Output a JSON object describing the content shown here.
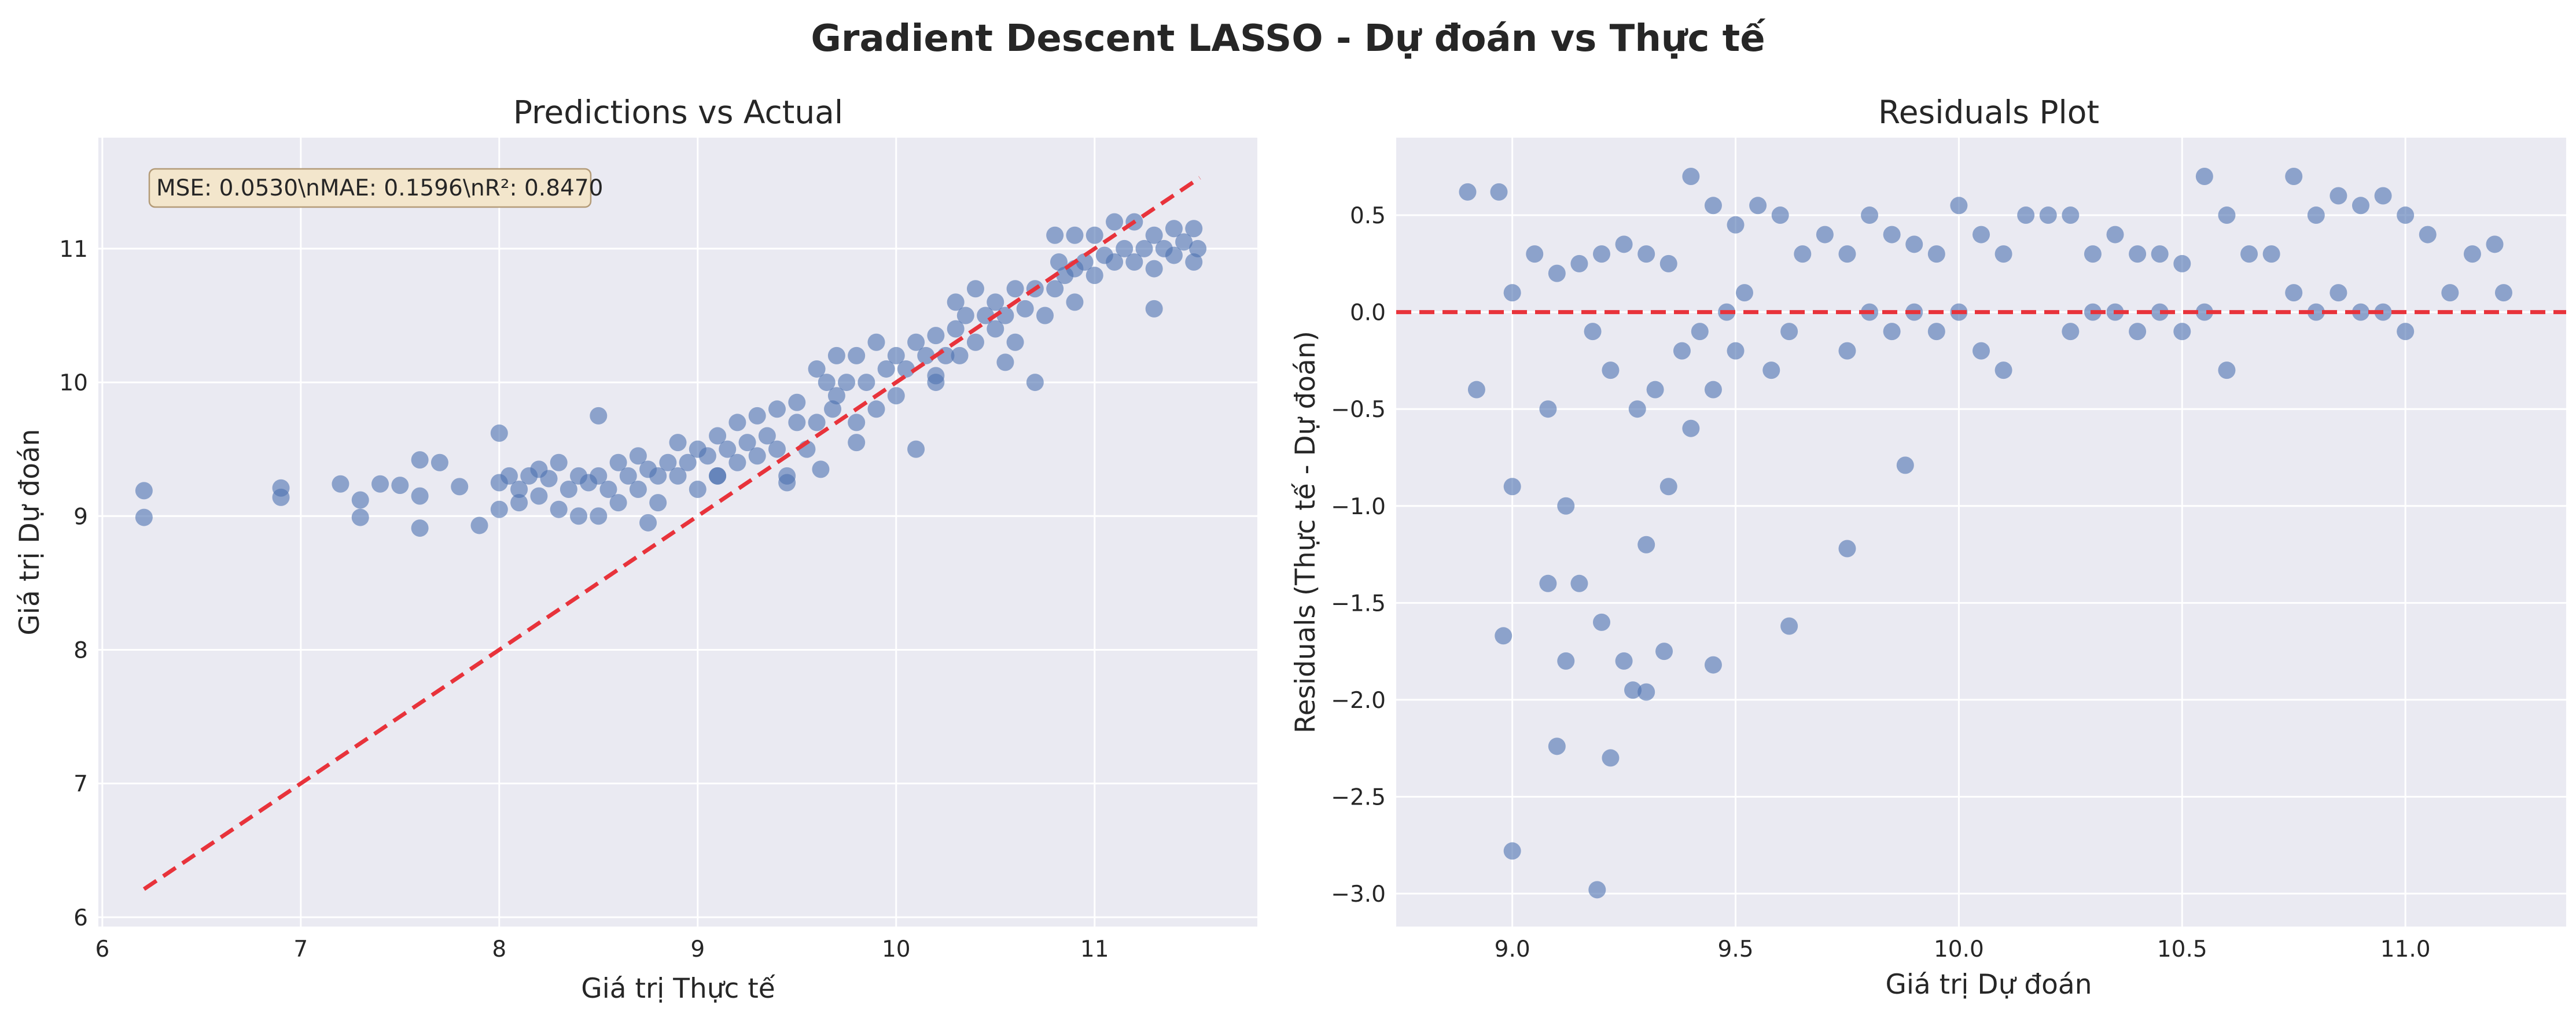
{
  "figure": {
    "title": "Gradient Descent LASSO - Dự đoán vs Thực tế"
  },
  "chart_data": [
    {
      "type": "scatter",
      "title": "Predictions vs Actual",
      "xlabel": "Giá trị Thực tế",
      "ylabel": "Giá trị Dự đoán",
      "xlim": [
        5.98,
        11.82
      ],
      "ylim": [
        5.93,
        11.83
      ],
      "xticks": [
        6,
        7,
        8,
        9,
        10,
        11
      ],
      "yticks": [
        6,
        7,
        8,
        9,
        10,
        11
      ],
      "grid": true,
      "annotation": "MSE: 0.0530\\nMAE: 0.1596\\nR²: 0.8470",
      "reference_line": {
        "x": [
          6.21,
          11.53
        ],
        "y": [
          6.21,
          11.53
        ],
        "style": "dashed",
        "color": "#e8333b"
      },
      "point_color": "#4c72b0",
      "x": [
        6.21,
        6.21,
        6.9,
        6.9,
        7.2,
        7.3,
        7.3,
        7.4,
        7.5,
        7.6,
        7.6,
        7.6,
        7.7,
        7.8,
        7.9,
        8.0,
        8.0,
        8.0,
        8.05,
        8.1,
        8.1,
        8.15,
        8.2,
        8.2,
        8.25,
        8.3,
        8.3,
        8.35,
        8.4,
        8.4,
        8.45,
        8.5,
        8.5,
        8.55,
        8.6,
        8.6,
        8.65,
        8.7,
        8.7,
        8.75,
        8.8,
        8.8,
        8.85,
        8.9,
        8.9,
        8.95,
        9.0,
        9.0,
        9.05,
        9.1,
        9.1,
        9.15,
        9.2,
        9.2,
        9.25,
        9.3,
        9.3,
        9.35,
        9.4,
        9.4,
        9.45,
        9.5,
        9.5,
        9.55,
        9.6,
        9.6,
        9.62,
        9.65,
        9.68,
        9.7,
        9.7,
        9.75,
        9.8,
        9.8,
        9.85,
        9.9,
        9.9,
        9.95,
        10.0,
        10.0,
        10.05,
        10.1,
        10.1,
        10.15,
        10.2,
        10.2,
        10.25,
        10.3,
        10.3,
        10.32,
        10.35,
        10.4,
        10.4,
        10.45,
        10.5,
        10.5,
        10.55,
        10.6,
        10.6,
        10.65,
        10.7,
        10.7,
        10.75,
        10.8,
        10.8,
        10.82,
        10.85,
        10.9,
        10.9,
        10.95,
        11.0,
        11.0,
        11.05,
        11.1,
        11.1,
        11.15,
        11.2,
        11.2,
        11.25,
        11.3,
        11.3,
        11.35,
        11.4,
        11.4,
        11.45,
        11.5,
        11.5,
        11.52,
        8.5,
        8.75,
        9.1,
        9.45,
        9.8,
        10.2,
        10.55,
        10.9,
        11.3
      ],
      "y": [
        9.19,
        8.99,
        9.21,
        9.14,
        9.24,
        9.12,
        8.99,
        9.24,
        9.23,
        9.42,
        9.15,
        8.91,
        9.4,
        9.22,
        8.93,
        9.62,
        9.25,
        9.05,
        9.3,
        9.2,
        9.1,
        9.3,
        9.35,
        9.15,
        9.28,
        9.4,
        9.05,
        9.2,
        9.3,
        9.0,
        9.25,
        9.75,
        9.3,
        9.2,
        9.4,
        9.1,
        9.3,
        9.45,
        9.2,
        9.35,
        9.3,
        9.1,
        9.4,
        9.55,
        9.3,
        9.4,
        9.5,
        9.2,
        9.45,
        9.6,
        9.3,
        9.5,
        9.7,
        9.4,
        9.55,
        9.75,
        9.45,
        9.6,
        9.8,
        9.5,
        9.3,
        9.85,
        9.7,
        9.5,
        10.1,
        9.7,
        9.35,
        10.0,
        9.8,
        10.2,
        9.9,
        10.0,
        10.2,
        9.7,
        10.0,
        10.3,
        9.8,
        10.1,
        10.2,
        9.9,
        10.1,
        10.3,
        9.5,
        10.2,
        10.35,
        10.0,
        10.2,
        10.6,
        10.4,
        10.2,
        10.5,
        10.7,
        10.3,
        10.5,
        10.6,
        10.4,
        10.5,
        10.7,
        10.3,
        10.55,
        10.7,
        10.0,
        10.5,
        11.1,
        10.7,
        10.9,
        10.8,
        11.1,
        10.85,
        10.9,
        11.1,
        10.8,
        10.95,
        11.2,
        10.9,
        11.0,
        11.2,
        10.9,
        11.0,
        11.1,
        10.85,
        11.0,
        11.15,
        10.95,
        11.05,
        11.15,
        10.9,
        11.0,
        9.0,
        8.95,
        9.3,
        9.25,
        9.55,
        10.05,
        10.15,
        10.6,
        10.55
      ]
    },
    {
      "type": "scatter",
      "title": "Residuals Plot",
      "xlabel": "Giá trị Dự đoán",
      "ylabel": "Residuals (Thực tế - Dự đoán)",
      "xlim": [
        8.74,
        11.36
      ],
      "ylim": [
        -3.17,
        0.9
      ],
      "xticks": [
        9.0,
        9.5,
        10.0,
        10.5,
        11.0
      ],
      "yticks": [
        0.5,
        0.0,
        -0.5,
        -1.0,
        -1.5,
        -2.0,
        -2.5,
        -3.0
      ],
      "ytick_labels": [
        "0.5",
        "0.0",
        "−0.5",
        "−1.0",
        "−1.5",
        "−2.0",
        "−2.5",
        "−3.0"
      ],
      "xtick_labels": [
        "9.0",
        "9.5",
        "10.0",
        "10.5",
        "11.0"
      ],
      "grid": true,
      "reference_line": {
        "y": 0,
        "style": "dashed",
        "color": "#e8333b"
      },
      "point_color": "#4c72b0",
      "x": [
        8.9,
        8.92,
        8.97,
        9.0,
        9.0,
        9.05,
        9.08,
        9.1,
        9.12,
        9.15,
        9.15,
        9.18,
        9.2,
        9.2,
        9.22,
        9.25,
        9.25,
        9.28,
        9.3,
        9.3,
        9.32,
        9.35,
        9.35,
        9.38,
        9.4,
        9.4,
        9.42,
        9.45,
        9.45,
        9.48,
        9.5,
        9.5,
        9.52,
        9.55,
        9.58,
        9.6,
        9.62,
        9.65,
        9.7,
        9.75,
        9.75,
        9.8,
        9.8,
        9.85,
        9.85,
        9.9,
        9.9,
        9.95,
        9.95,
        10.0,
        10.0,
        10.05,
        10.05,
        10.1,
        10.1,
        10.15,
        10.2,
        10.25,
        10.25,
        10.3,
        10.3,
        10.35,
        10.35,
        10.4,
        10.4,
        10.45,
        10.45,
        10.5,
        10.5,
        10.55,
        10.55,
        10.6,
        10.6,
        10.65,
        10.7,
        10.75,
        10.75,
        10.8,
        10.8,
        10.85,
        10.85,
        10.9,
        10.9,
        10.95,
        10.95,
        11.0,
        11.0,
        11.05,
        11.1,
        11.15,
        11.2,
        11.22,
        8.98,
        9.0,
        9.1,
        9.19,
        9.08,
        9.62,
        9.75,
        9.88,
        9.3,
        9.22,
        9.12,
        9.34,
        9.45,
        9.27
      ],
      "y": [
        0.62,
        -0.4,
        0.62,
        0.1,
        -0.9,
        0.3,
        -0.5,
        0.2,
        -1.0,
        0.25,
        -1.4,
        -0.1,
        0.3,
        -1.6,
        -0.3,
        0.35,
        -1.8,
        -0.5,
        0.3,
        -1.2,
        -0.4,
        0.25,
        -0.9,
        -0.2,
        0.7,
        -0.6,
        -0.1,
        0.55,
        -0.4,
        0.0,
        0.45,
        -0.2,
        0.1,
        0.55,
        -0.3,
        0.5,
        -0.1,
        0.3,
        0.4,
        0.3,
        -0.2,
        0.5,
        0.0,
        0.4,
        -0.1,
        0.35,
        0.0,
        0.3,
        -0.1,
        0.55,
        0.0,
        0.4,
        -0.2,
        0.3,
        -0.3,
        0.5,
        0.5,
        0.5,
        -0.1,
        0.3,
        0.0,
        0.4,
        0.0,
        0.3,
        -0.1,
        0.3,
        0.0,
        0.25,
        -0.1,
        0.7,
        0.0,
        0.5,
        -0.3,
        0.3,
        0.3,
        0.7,
        0.1,
        0.5,
        0.0,
        0.6,
        0.1,
        0.55,
        0.0,
        0.6,
        0.0,
        0.5,
        -0.1,
        0.4,
        0.1,
        0.3,
        0.35,
        0.1,
        -1.67,
        -2.78,
        -2.24,
        -2.98,
        -1.4,
        -1.62,
        -1.22,
        -0.79,
        -1.96,
        -2.3,
        -1.8,
        -1.75,
        -1.82,
        -1.95
      ]
    }
  ]
}
